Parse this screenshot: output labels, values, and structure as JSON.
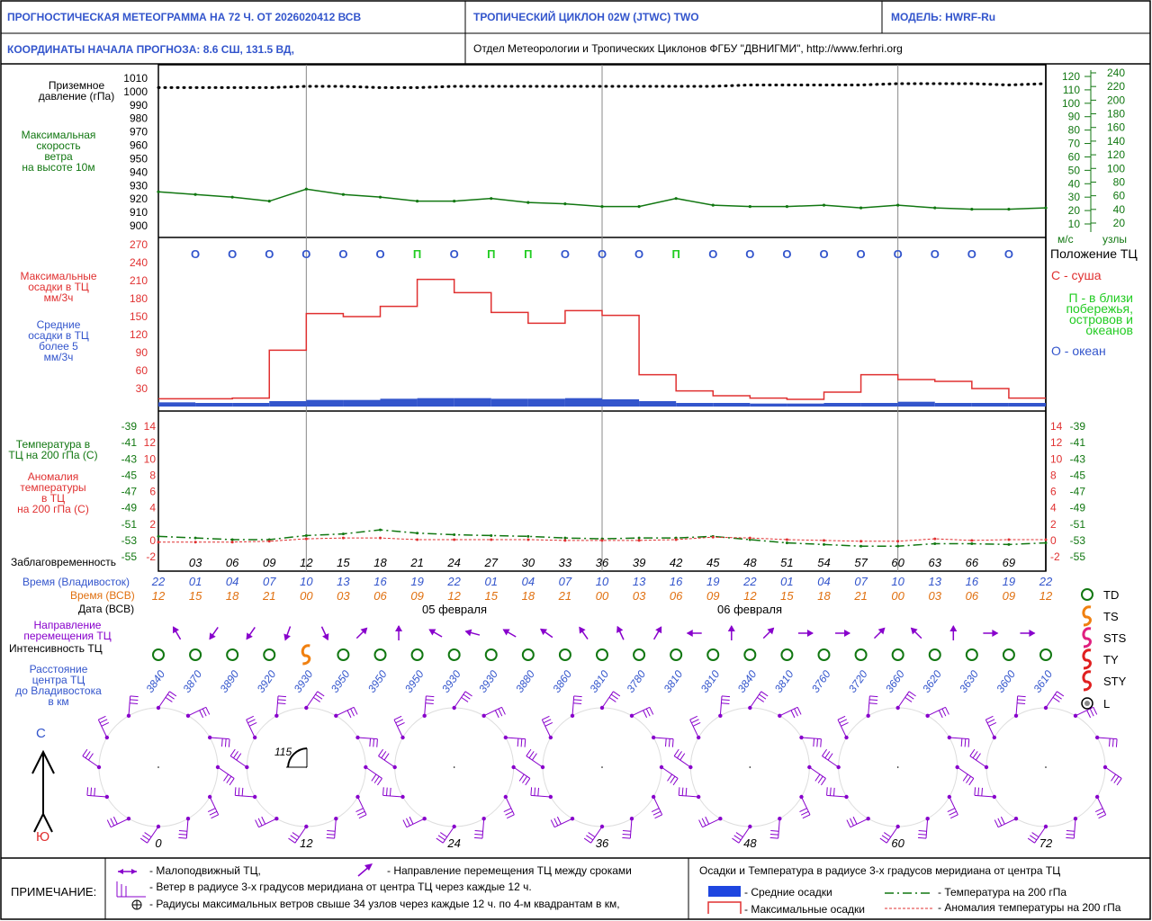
{
  "header": {
    "title": "ПРОГНОСТИЧЕСКАЯ МЕТЕОГРАММА НА 72 Ч. ОТ 2026020412 ВСВ",
    "cyclone": "ТРОПИЧЕСКИЙ ЦИКЛОН  02W  (JTWC)  TWO",
    "model": "МОДЕЛЬ:   HWRF-Ru",
    "coords": "КООРДИНАТЫ НАЧАЛА ПРОГНОЗА:  8.6  СШ,    131.5  ВД,",
    "dept": "Отдел Метеорологии и Тропических Циклонов ФГБУ \"ДВНИГМИ\",  http://www.ferhri.org"
  },
  "labels": {
    "pressure": [
      "Приземное",
      "давление (гПа)"
    ],
    "wind": [
      "Максимальная",
      "скорость",
      "ветра",
      "на высоте 10м"
    ],
    "max_precip": [
      "Максимальные",
      "осадки в ТЦ",
      "мм/3ч"
    ],
    "mean_precip": [
      "Средние",
      "осадки в ТЦ",
      "более 5",
      "мм/3ч"
    ],
    "temp200": [
      "Температура в",
      "ТЦ на 200 гПа (С)"
    ],
    "anom": [
      "Аномалия",
      "температуры",
      "в ТЦ",
      "на 200 гПа (С)"
    ],
    "leadtime": "Заблаговременность",
    "time_vl": "Время (Владивосток)",
    "time_utc": "Время (ВСВ)",
    "date_utc": "Дата (ВСВ)",
    "direction": [
      "Направление",
      "перемещения ТЦ"
    ],
    "intensity": "Интенсивность ТЦ",
    "distance": [
      "Расстояние",
      "центра ТЦ",
      "до Владивостока",
      "в км"
    ],
    "north": "С",
    "south": "Ю",
    "wind_units_ms": "м/с",
    "wind_units_kt": "узлы",
    "radius_angle": "115"
  },
  "position_legend": {
    "title": "Положение ТЦ",
    "land": "С - суша",
    "coast": [
      "П - в близи",
      "побережья,",
      "островов и",
      "океанов"
    ],
    "ocean": "О - океан"
  },
  "intensity_legend": [
    "TD",
    "TS",
    "STS",
    "TY",
    "STY",
    "L"
  ],
  "footer": {
    "note": "ПРИМЕЧАНИЕ:",
    "stationary": "- Малоподвижный ТЦ,",
    "direction": "- Направление перемещения ТЦ между сроками",
    "wind_radius": "- Ветер в радиусе 3-х градусов меридиана от центра ТЦ через каждые 12 ч.",
    "max_radius": "- Радиусы максимальных ветров свыше 34 узлов через каждые 12 ч. по 4-м квадрантам в км,",
    "right_title": "Осадки и Температура в радиусе 3-х градусов меридиана от центра ТЦ",
    "mean_precip": "- Средние осадки",
    "max_precip": "- Максимальные осадки",
    "temp": "- Температура на 200 гПа",
    "anom": "- Аномалия температуры на 200 гПа"
  },
  "chart_data": {
    "type": "line",
    "lead_hours": [
      0,
      3,
      6,
      9,
      12,
      15,
      18,
      21,
      24,
      27,
      30,
      33,
      36,
      39,
      42,
      45,
      48,
      51,
      54,
      57,
      60,
      63,
      66,
      69,
      72
    ],
    "lead_labels": [
      "03",
      "06",
      "09",
      "12",
      "15",
      "18",
      "21",
      "24",
      "27",
      "30",
      "33",
      "36",
      "39",
      "42",
      "45",
      "48",
      "51",
      "54",
      "57",
      "60",
      "63",
      "66",
      "69"
    ],
    "time_vladivostok": [
      "22",
      "01",
      "04",
      "07",
      "10",
      "13",
      "16",
      "19",
      "22",
      "01",
      "04",
      "07",
      "10",
      "13",
      "16",
      "19",
      "22",
      "01",
      "04",
      "07",
      "10",
      "13",
      "16",
      "19",
      "22"
    ],
    "time_utc": [
      "12",
      "15",
      "18",
      "21",
      "00",
      "03",
      "06",
      "09",
      "12",
      "15",
      "18",
      "21",
      "00",
      "03",
      "06",
      "09",
      "12",
      "15",
      "18",
      "21",
      "00",
      "03",
      "06",
      "09",
      "12"
    ],
    "dates": [
      "05 февраля",
      "06 февраля"
    ],
    "pressure_hpa": {
      "ylim": [
        900,
        1010
      ],
      "ticks": [
        900,
        910,
        920,
        930,
        940,
        950,
        960,
        970,
        980,
        990,
        1000,
        1010
      ],
      "values": [
        1003,
        1003,
        1003,
        1003,
        1004,
        1004,
        1003,
        1003,
        1004,
        1004,
        1004,
        1004,
        1004,
        1004,
        1004,
        1004,
        1005,
        1005,
        1005,
        1005,
        1006,
        1006,
        1006,
        1005,
        1006
      ]
    },
    "max_wind": {
      "ticks_ms": [
        10,
        20,
        30,
        40,
        50,
        60,
        70,
        80,
        90,
        100,
        110,
        120
      ],
      "ticks_kt": [
        20,
        40,
        60,
        80,
        100,
        120,
        140,
        160,
        180,
        200,
        220,
        240
      ],
      "values_ms": [
        34,
        32,
        30,
        27,
        36,
        32,
        30,
        27,
        27,
        29,
        26,
        25,
        23,
        23,
        29,
        24,
        23,
        23,
        24,
        22,
        24,
        22,
        21,
        21,
        22
      ]
    },
    "precip": {
      "ylim": [
        0,
        285
      ],
      "ticks": [
        30,
        60,
        90,
        120,
        150,
        180,
        210,
        240,
        270
      ],
      "max_mm3h": [
        13,
        13,
        14,
        94,
        155,
        150,
        167,
        212,
        190,
        157,
        139,
        160,
        152,
        53,
        26,
        18,
        14,
        12,
        24,
        53,
        45,
        42,
        30,
        14
      ],
      "mean_mm3h": [
        7,
        6,
        6,
        9,
        11,
        11,
        13,
        14,
        14,
        13,
        13,
        14,
        12,
        9,
        6,
        6,
        5,
        5,
        6,
        6,
        8,
        6,
        6,
        6
      ],
      "position": [
        "О",
        "О",
        "О",
        "О",
        "О",
        "О",
        "П",
        "О",
        "П",
        "П",
        "О",
        "О",
        "О",
        "П",
        "О",
        "О",
        "О",
        "О",
        "О",
        "О",
        "О",
        "О",
        "О"
      ]
    },
    "temperature": {
      "ticks_c": [
        -55,
        -53,
        -51,
        -49,
        -47,
        -45,
        -43,
        -41,
        -39
      ],
      "anom_ticks": [
        -2,
        0,
        2,
        4,
        6,
        8,
        10,
        12,
        14
      ],
      "temp200_c": [
        -52.5,
        -52.7,
        -52.9,
        -52.9,
        -52.4,
        -52.2,
        -51.7,
        -52.1,
        -52.3,
        -52.4,
        -52.5,
        -52.7,
        -52.8,
        -52.7,
        -52.7,
        -52.5,
        -52.9,
        -53.3,
        -53.5,
        -53.7,
        -53.7,
        -53.4,
        -53.4,
        -53.5,
        -53.3
      ],
      "anom_c": [
        -0.2,
        -0.2,
        -0.2,
        -0.1,
        0.2,
        0.3,
        0.3,
        0.1,
        0.1,
        0.1,
        0.1,
        0.0,
        0.0,
        0.0,
        0.1,
        0.4,
        0.3,
        0.1,
        0.0,
        -0.1,
        -0.1,
        0.2,
        0.0,
        0.1,
        0.1
      ]
    },
    "direction_deg": [
      330,
      215,
      215,
      200,
      155,
      45,
      0,
      300,
      285,
      300,
      305,
      325,
      335,
      30,
      270,
      0,
      45,
      90,
      90,
      45,
      315,
      0,
      90,
      90
    ],
    "intensity": [
      "TD",
      "TD",
      "TD",
      "TD",
      "TS",
      "TD",
      "TD",
      "TD",
      "TD",
      "TD",
      "TD",
      "TD",
      "TD",
      "TD",
      "TD",
      "TD",
      "TD",
      "TD",
      "TD",
      "TD",
      "TD",
      "TD",
      "TD",
      "TD",
      "TD"
    ],
    "distance_km": [
      3840,
      3870,
      3890,
      3920,
      3930,
      3950,
      3950,
      3950,
      3930,
      3930,
      3880,
      3860,
      3810,
      3780,
      3810,
      3810,
      3840,
      3810,
      3760,
      3720,
      3660,
      3620,
      3630,
      3600,
      3610
    ],
    "wind_rose_hours": [
      0,
      12,
      24,
      36,
      48,
      60,
      72
    ]
  }
}
